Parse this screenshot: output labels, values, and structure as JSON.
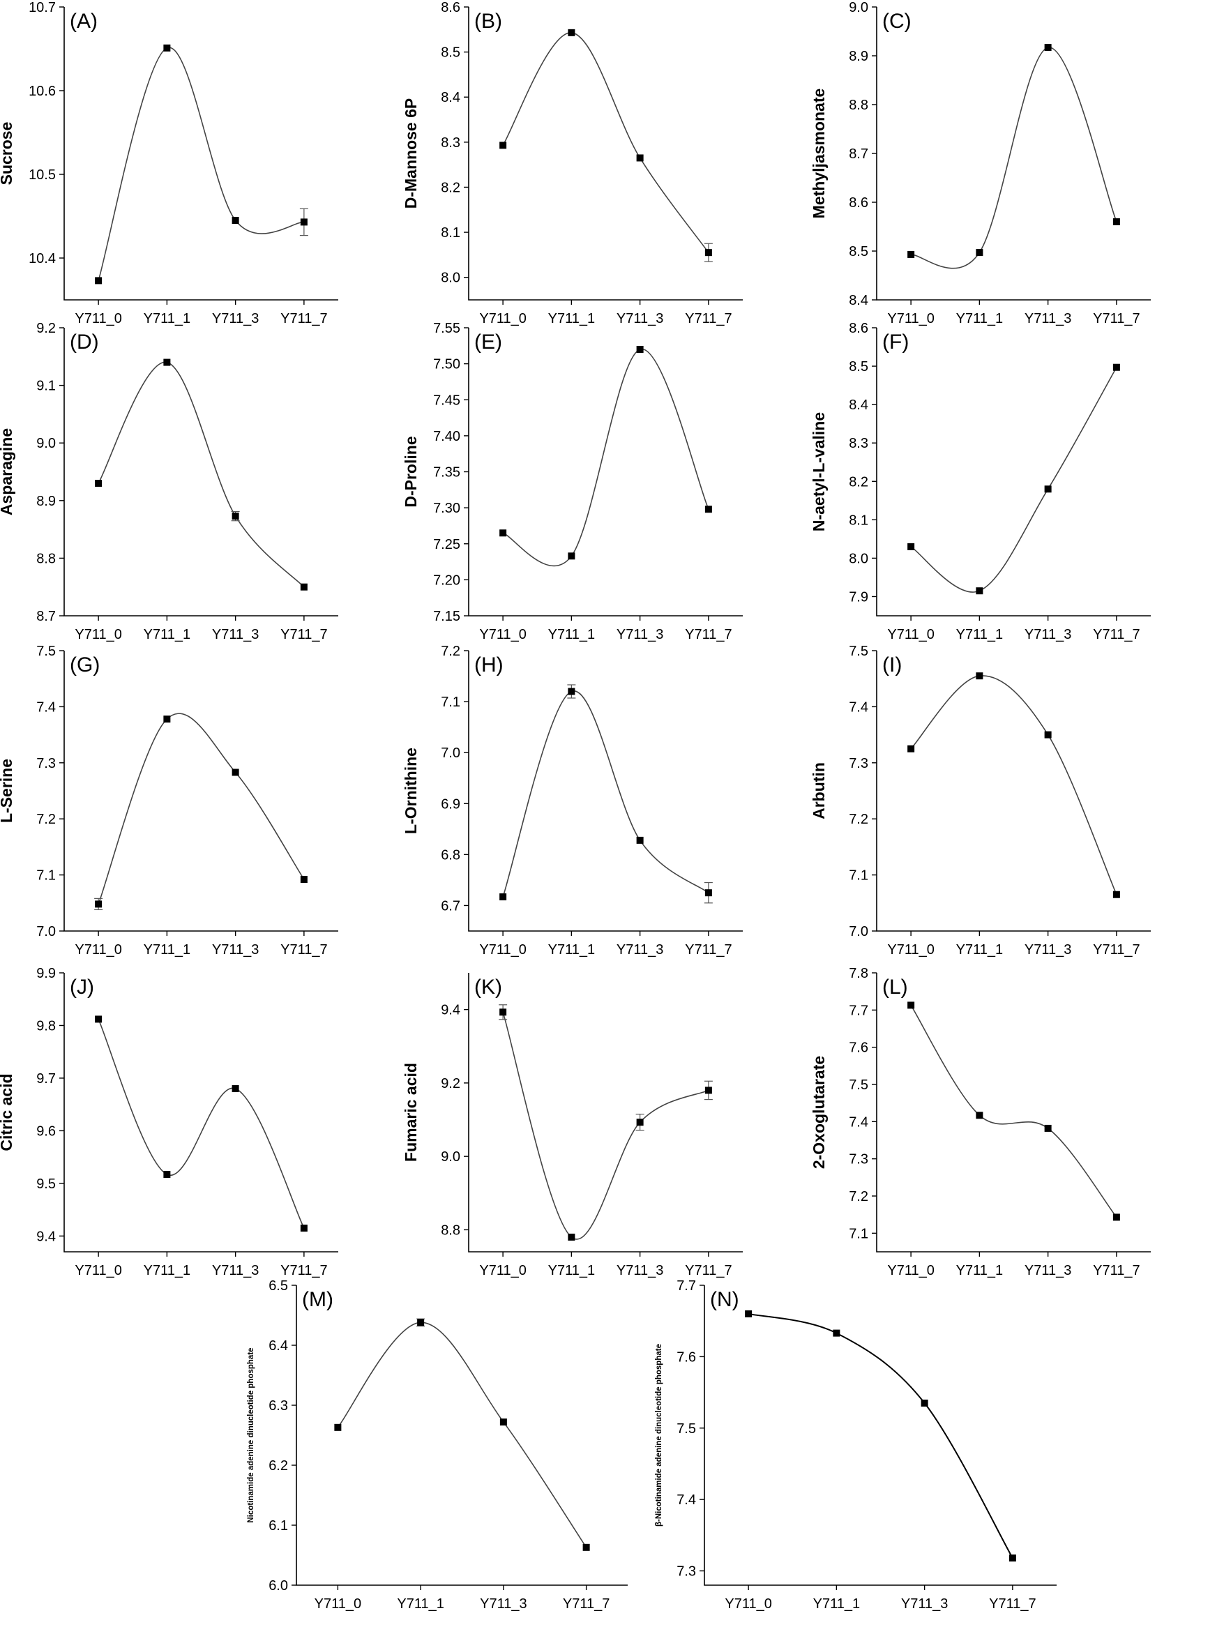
{
  "chart_data": [
    {
      "id": "A",
      "label": "(A)",
      "type": "line",
      "ylabel": "Sucrose",
      "categories": [
        "Y711_0",
        "Y711_1",
        "Y711_3",
        "Y711_7"
      ],
      "values": [
        10.373,
        10.651,
        10.445,
        10.443
      ],
      "errors": [
        0,
        0,
        0,
        0.016
      ],
      "ylim": [
        10.35,
        10.7
      ],
      "yticks": [
        "10.4",
        "10.5",
        "10.6",
        "10.7"
      ]
    },
    {
      "id": "B",
      "label": "(B)",
      "type": "line",
      "ylabel": "D-Mannose 6P",
      "categories": [
        "Y711_0",
        "Y711_1",
        "Y711_3",
        "Y711_7"
      ],
      "values": [
        8.293,
        8.543,
        8.265,
        8.055
      ],
      "errors": [
        0,
        0,
        0,
        0.02
      ],
      "ylim": [
        7.95,
        8.6
      ],
      "yticks": [
        "8.0",
        "8.1",
        "8.2",
        "8.3",
        "8.4",
        "8.5",
        "8.6"
      ]
    },
    {
      "id": "C",
      "label": "(C)",
      "type": "line",
      "ylabel": "Methyljasmonate",
      "categories": [
        "Y711_0",
        "Y711_1",
        "Y711_3",
        "Y711_7"
      ],
      "values": [
        8.493,
        8.497,
        8.917,
        8.56
      ],
      "errors": [
        0,
        0,
        0,
        0
      ],
      "ylim": [
        8.4,
        9.0
      ],
      "yticks": [
        "8.4",
        "8.5",
        "8.6",
        "8.7",
        "8.8",
        "8.9",
        "9.0"
      ]
    },
    {
      "id": "D",
      "label": "(D)",
      "type": "line",
      "ylabel": "Asparagine",
      "categories": [
        "Y711_0",
        "Y711_1",
        "Y711_3",
        "Y711_7"
      ],
      "values": [
        8.93,
        9.14,
        8.873,
        8.75
      ],
      "errors": [
        0,
        0,
        0.008,
        0
      ],
      "ylim": [
        8.7,
        9.2
      ],
      "yticks": [
        "8.7",
        "8.8",
        "8.9",
        "9.0",
        "9.1",
        "9.2"
      ]
    },
    {
      "id": "E",
      "label": "(E)",
      "type": "line",
      "ylabel": "D-Proline",
      "categories": [
        "Y711_0",
        "Y711_1",
        "Y711_3",
        "Y711_7"
      ],
      "values": [
        7.265,
        7.233,
        7.52,
        7.298
      ],
      "errors": [
        0,
        0,
        0,
        0
      ],
      "ylim": [
        7.15,
        7.55
      ],
      "yticks": [
        "7.15",
        "7.20",
        "7.25",
        "7.30",
        "7.35",
        "7.40",
        "7.45",
        "7.50",
        "7.55"
      ]
    },
    {
      "id": "F",
      "label": "(F)",
      "type": "line",
      "ylabel": "N-aetyl-L-valine",
      "categories": [
        "Y711_0",
        "Y711_1",
        "Y711_3",
        "Y711_7"
      ],
      "values": [
        8.03,
        7.915,
        8.18,
        8.497
      ],
      "errors": [
        0,
        0,
        0,
        0
      ],
      "ylim": [
        7.85,
        8.6
      ],
      "yticks": [
        "7.9",
        "8.0",
        "8.1",
        "8.2",
        "8.3",
        "8.4",
        "8.5",
        "8.6"
      ]
    },
    {
      "id": "G",
      "label": "(G)",
      "type": "line",
      "ylabel": "L-Serine",
      "categories": [
        "Y711_0",
        "Y711_1",
        "Y711_3",
        "Y711_7"
      ],
      "values": [
        7.048,
        7.378,
        7.283,
        7.092
      ],
      "errors": [
        0.01,
        0,
        0,
        0
      ],
      "ylim": [
        7.0,
        7.5
      ],
      "yticks": [
        "7.0",
        "7.1",
        "7.2",
        "7.3",
        "7.4",
        "7.5"
      ]
    },
    {
      "id": "H",
      "label": "(H)",
      "type": "line",
      "ylabel": "L-Ornithine",
      "categories": [
        "Y711_0",
        "Y711_1",
        "Y711_3",
        "Y711_7"
      ],
      "values": [
        6.717,
        7.12,
        6.828,
        6.725
      ],
      "errors": [
        0,
        0.013,
        0,
        0.02
      ],
      "ylim": [
        6.65,
        7.2
      ],
      "yticks": [
        "6.7",
        "6.8",
        "6.9",
        "7.0",
        "7.1",
        "7.2"
      ]
    },
    {
      "id": "I",
      "label": "(I)",
      "type": "line",
      "ylabel": "Arbutin",
      "categories": [
        "Y711_0",
        "Y711_1",
        "Y711_3",
        "Y711_7"
      ],
      "values": [
        7.325,
        7.455,
        7.35,
        7.065
      ],
      "errors": [
        0,
        0,
        0,
        0
      ],
      "ylim": [
        7.0,
        7.5
      ],
      "yticks": [
        "7.0",
        "7.1",
        "7.2",
        "7.3",
        "7.4",
        "7.5"
      ]
    },
    {
      "id": "J",
      "label": "(J)",
      "type": "line",
      "ylabel": "Citric acid",
      "categories": [
        "Y711_0",
        "Y711_1",
        "Y711_3",
        "Y711_7"
      ],
      "values": [
        9.812,
        9.517,
        9.68,
        9.415
      ],
      "errors": [
        0,
        0,
        0,
        0
      ],
      "ylim": [
        9.37,
        9.9
      ],
      "yticks": [
        "9.4",
        "9.5",
        "9.6",
        "9.7",
        "9.8",
        "9.9"
      ]
    },
    {
      "id": "K",
      "label": "(K)",
      "type": "line",
      "ylabel": "Fumaric acid",
      "categories": [
        "Y711_0",
        "Y711_1",
        "Y711_3",
        "Y711_7"
      ],
      "values": [
        9.393,
        8.78,
        9.093,
        9.18
      ],
      "errors": [
        0.02,
        0,
        0.022,
        0.025
      ],
      "ylim": [
        8.74,
        9.5
      ],
      "yticks": [
        "8.8",
        "9.0",
        "9.2",
        "9.4"
      ]
    },
    {
      "id": "L",
      "label": "(L)",
      "type": "line",
      "ylabel": "2-Oxoglutarate",
      "categories": [
        "Y711_0",
        "Y711_1",
        "Y711_3",
        "Y711_7"
      ],
      "values": [
        7.713,
        7.417,
        7.382,
        7.143
      ],
      "errors": [
        0,
        0,
        0,
        0
      ],
      "ylim": [
        7.05,
        7.8
      ],
      "yticks": [
        "7.1",
        "7.2",
        "7.3",
        "7.4",
        "7.5",
        "7.6",
        "7.7",
        "7.8"
      ]
    },
    {
      "id": "M",
      "label": "(M)",
      "type": "line",
      "ylabel": "Nicotinamide adenine dinucleotide phosphate",
      "categories": [
        "Y711_0",
        "Y711_1",
        "Y711_3",
        "Y711_7"
      ],
      "values": [
        6.263,
        6.438,
        6.272,
        6.063
      ],
      "errors": [
        0,
        0.006,
        0,
        0
      ],
      "ylim": [
        6.0,
        6.5
      ],
      "yticks": [
        "6.0",
        "6.1",
        "6.2",
        "6.3",
        "6.4",
        "6.5"
      ]
    },
    {
      "id": "N",
      "label": "(N)",
      "type": "line",
      "ylabel": "β-Nicotinamide adenine dinucleotide phosphate",
      "categories": [
        "Y711_0",
        "Y711_1",
        "Y711_3",
        "Y711_7"
      ],
      "values": [
        7.66,
        7.633,
        7.535,
        7.318
      ],
      "errors": [
        0,
        0,
        0,
        0
      ],
      "ylim": [
        7.28,
        7.7
      ],
      "yticks": [
        "7.3",
        "7.4",
        "7.5",
        "7.6",
        "7.7"
      ]
    }
  ]
}
